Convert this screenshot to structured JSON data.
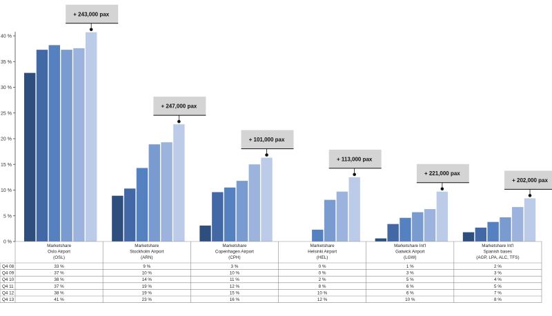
{
  "chart_data": {
    "type": "bar",
    "y_axis": {
      "min": 0,
      "max": 40,
      "step": 5,
      "tick_suffix": " %"
    },
    "gridlines": false,
    "series_colors": [
      "#2e4f7e",
      "#4269a6",
      "#5581c1",
      "#7a9bd0",
      "#9cb3dd",
      "#bccbe8"
    ],
    "categories": [
      {
        "lines": [
          "Marketshare",
          "Oslo Airport",
          "(OSL)"
        ]
      },
      {
        "lines": [
          "Marketshare",
          "Stockholm Airport",
          "(ARN)"
        ]
      },
      {
        "lines": [
          "Marketshare",
          "Copenhagen Airport",
          "(CPH)"
        ]
      },
      {
        "lines": [
          "Marketshare",
          "Helsinki Airport",
          "(HEL)"
        ]
      },
      {
        "lines": [
          "Marketshare Int'l",
          "Gatwick Airport",
          "(LGW)"
        ]
      },
      {
        "lines": [
          "Marketshare Int'l",
          "Spanish bases",
          "(AGP, LPA, ALC, TFS)"
        ]
      }
    ],
    "series": [
      {
        "name": "Q4 08",
        "values": [
          32.8,
          8.9,
          3.1,
          0,
          0.6,
          1.8
        ]
      },
      {
        "name": "Q4 09",
        "values": [
          37.3,
          10.3,
          9.6,
          0,
          3.4,
          2.7
        ]
      },
      {
        "name": "Q4 10",
        "values": [
          38.2,
          14.3,
          10.5,
          2.3,
          4.6,
          3.8
        ]
      },
      {
        "name": "Q4 11",
        "values": [
          37.3,
          18.9,
          11.8,
          8.1,
          5.7,
          4.7
        ]
      },
      {
        "name": "Q4 12",
        "values": [
          37.6,
          19.3,
          15.0,
          9.7,
          6.3,
          6.7
        ]
      },
      {
        "name": "Q4 13",
        "values": [
          40.7,
          22.8,
          16.3,
          12.5,
          9.7,
          8.4
        ]
      }
    ],
    "table_rows": [
      {
        "label": "Q4 08",
        "cells": [
          "33 %",
          "9 %",
          "3 %",
          "0 %",
          "1 %",
          "2 %"
        ]
      },
      {
        "label": "Q4 09",
        "cells": [
          "37 %",
          "10 %",
          "10 %",
          "0 %",
          "3 %",
          "3 %"
        ]
      },
      {
        "label": "Q4 10",
        "cells": [
          "38 %",
          "14 %",
          "11 %",
          "2 %",
          "5 %",
          "4 %"
        ]
      },
      {
        "label": "Q4 11",
        "cells": [
          "37 %",
          "19 %",
          "12 %",
          "8 %",
          "6 %",
          "5 %"
        ]
      },
      {
        "label": "Q4 12",
        "cells": [
          "38 %",
          "19 %",
          "15 %",
          "10 %",
          "6 %",
          "7 %"
        ]
      },
      {
        "label": "Q4 13",
        "cells": [
          "41 %",
          "23 %",
          "16 %",
          "12 %",
          "10 %",
          "8 %"
        ]
      }
    ],
    "callouts": [
      "+ 243,000 pax",
      "+ 247,000 pax",
      "+ 101,000 pax",
      "+ 113,000 pax",
      "+ 221,000 pax",
      "+ 202,000 pax"
    ]
  }
}
